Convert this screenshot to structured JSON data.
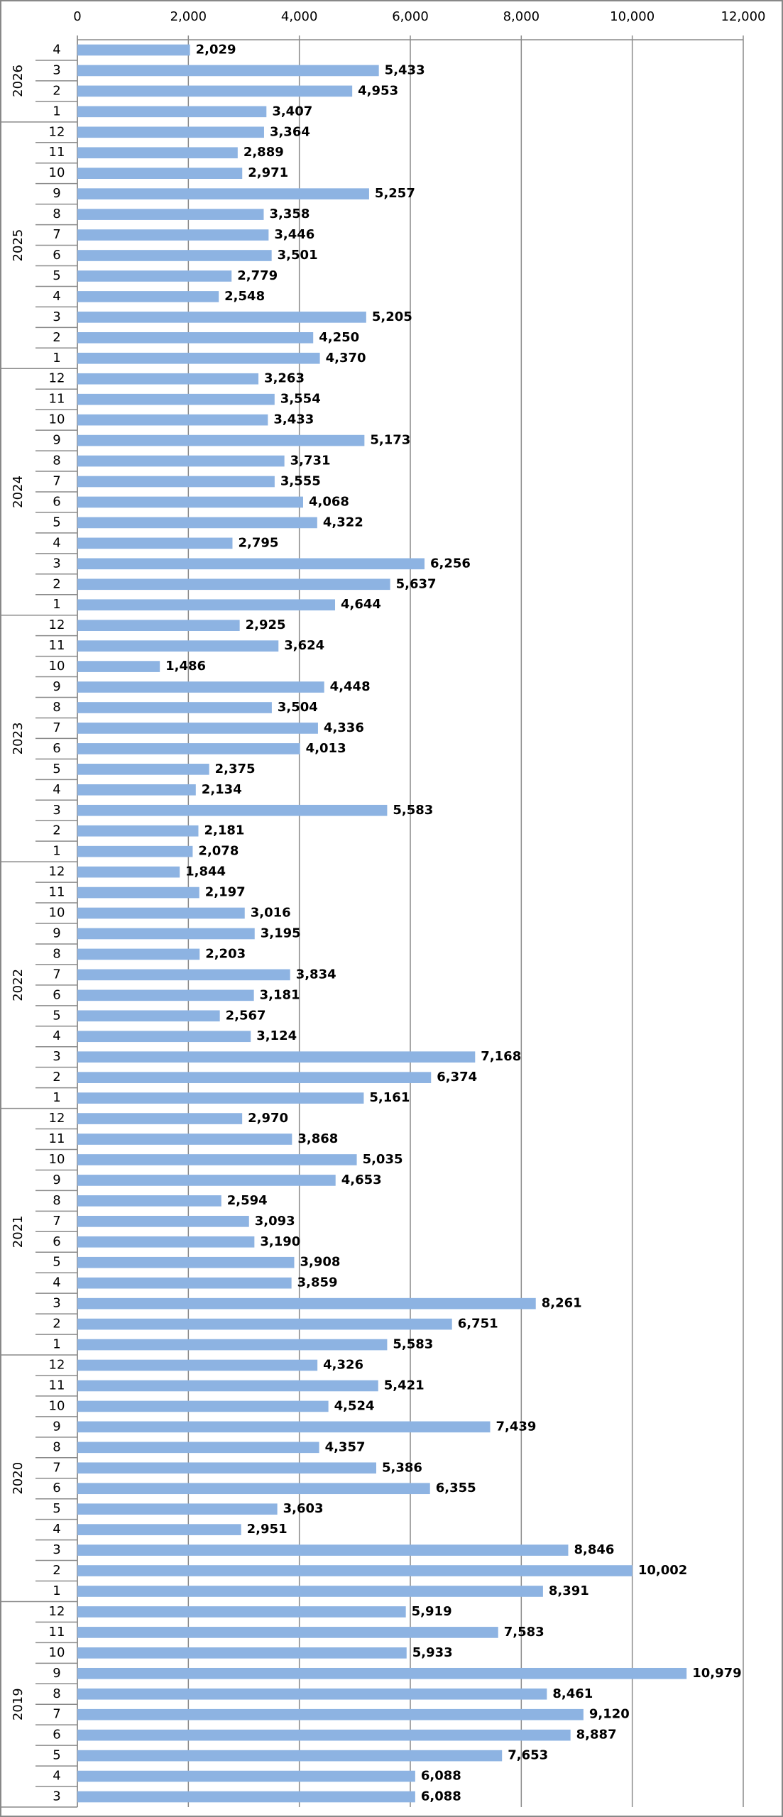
{
  "chart_data": {
    "type": "bar",
    "orientation": "horizontal",
    "color": "#8db3e2",
    "grid": true,
    "xlim": [
      0,
      12000
    ],
    "xticks": [
      0,
      {
        "value": 2000,
        "label": "2,000"
      },
      {
        "value": 4000,
        "label": "4,000"
      },
      {
        "value": 6000,
        "label": "6,000"
      },
      {
        "value": 8000,
        "label": "8,000"
      },
      {
        "value": 10000,
        "label": "10,000"
      },
      {
        "value": 12000,
        "label": "12,000"
      }
    ],
    "groups": [
      {
        "label": "2026",
        "categories": [
          "4",
          "3",
          "2",
          "1"
        ],
        "values": [
          2029,
          5433,
          4953,
          3407
        ],
        "value_labels": [
          "2,029",
          "5,433",
          "4,953",
          "3,407"
        ]
      },
      {
        "label": "2025",
        "categories": [
          "12",
          "11",
          "10",
          "9",
          "8",
          "7",
          "6",
          "5",
          "4",
          "3",
          "2",
          "1"
        ],
        "values": [
          3364,
          2889,
          2971,
          5257,
          3358,
          3446,
          3501,
          2779,
          2548,
          5205,
          4250,
          4370
        ],
        "value_labels": [
          "3,364",
          "2,889",
          "2,971",
          "5,257",
          "3,358",
          "3,446",
          "3,501",
          "2,779",
          "2,548",
          "5,205",
          "4,250",
          "4,370"
        ]
      },
      {
        "label": "2024",
        "categories": [
          "12",
          "11",
          "10",
          "9",
          "8",
          "7",
          "6",
          "5",
          "4",
          "3",
          "2",
          "1"
        ],
        "values": [
          3263,
          3554,
          3433,
          5173,
          3731,
          3555,
          4068,
          4322,
          2795,
          6256,
          5637,
          4644
        ],
        "value_labels": [
          "3,263",
          "3,554",
          "3,433",
          "5,173",
          "3,731",
          "3,555",
          "4,068",
          "4,322",
          "2,795",
          "6,256",
          "5,637",
          "4,644"
        ]
      },
      {
        "label": "2023",
        "categories": [
          "12",
          "11",
          "10",
          "9",
          "8",
          "7",
          "6",
          "5",
          "4",
          "3",
          "2",
          "1"
        ],
        "values": [
          2925,
          3624,
          1486,
          4448,
          3504,
          4336,
          4013,
          2375,
          2134,
          5583,
          2181,
          2078
        ],
        "value_labels": [
          "2,925",
          "3,624",
          "1,486",
          "4,448",
          "3,504",
          "4,336",
          "4,013",
          "2,375",
          "2,134",
          "5,583",
          "2,181",
          "2,078"
        ]
      },
      {
        "label": "2022",
        "categories": [
          "12",
          "11",
          "10",
          "9",
          "8",
          "7",
          "6",
          "5",
          "4",
          "3",
          "2",
          "1"
        ],
        "values": [
          1844,
          2197,
          3016,
          3195,
          2203,
          3834,
          3181,
          2567,
          3124,
          7168,
          6374,
          5161
        ],
        "value_labels": [
          "1,844",
          "2,197",
          "3,016",
          "3,195",
          "2,203",
          "3,834",
          "3,181",
          "2,567",
          "3,124",
          "7,168",
          "6,374",
          "5,161"
        ]
      },
      {
        "label": "2021",
        "categories": [
          "12",
          "11",
          "10",
          "9",
          "8",
          "7",
          "6",
          "5",
          "4",
          "3",
          "2",
          "1"
        ],
        "values": [
          2970,
          3868,
          5035,
          4653,
          2594,
          3093,
          3190,
          3908,
          3859,
          8261,
          6751,
          5583
        ],
        "value_labels": [
          "2,970",
          "3,868",
          "5,035",
          "4,653",
          "2,594",
          "3,093",
          "3,190",
          "3,908",
          "3,859",
          "8,261",
          "6,751",
          "5,583"
        ]
      },
      {
        "label": "2020",
        "categories": [
          "12",
          "11",
          "10",
          "9",
          "8",
          "7",
          "6",
          "5",
          "4",
          "3",
          "2",
          "1"
        ],
        "values": [
          4326,
          5421,
          4524,
          7439,
          4357,
          5386,
          6355,
          3603,
          2951,
          8846,
          10002,
          8391
        ],
        "value_labels": [
          "4,326",
          "5,421",
          "4,524",
          "7,439",
          "4,357",
          "5,386",
          "6,355",
          "3,603",
          "2,951",
          "8,846",
          "10,002",
          "8,391"
        ]
      },
      {
        "label": "2019",
        "categories": [
          "12",
          "11",
          "10",
          "9",
          "8",
          "7",
          "6",
          "5",
          "4",
          "3"
        ],
        "values": [
          5919,
          7583,
          5933,
          10979,
          8461,
          9120,
          8887,
          7653,
          6088,
          6088
        ],
        "value_labels": [
          "5,919",
          "7,583",
          "5,933",
          "10,979",
          "8,461",
          "9,120",
          "8,887",
          "7,653",
          "6,088",
          "6,088"
        ]
      }
    ]
  }
}
